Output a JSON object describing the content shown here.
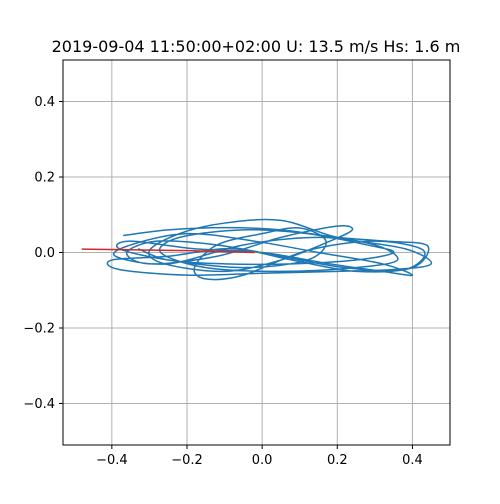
{
  "chart_data": {
    "type": "line",
    "title": "2019-09-04 11:50:00+02:00 U: 13.5 m/s Hs: 1.6 m",
    "xlabel": "",
    "ylabel": "",
    "xlim": [
      -0.53,
      0.5
    ],
    "ylim": [
      -0.51,
      0.51
    ],
    "x_ticks": [
      -0.4,
      -0.2,
      0.0,
      0.2,
      0.4
    ],
    "x_tick_labels": [
      "−0.4",
      "−0.2",
      "0.0",
      "0.2",
      "0.4"
    ],
    "y_ticks": [
      0.4,
      0.2,
      0.0,
      -0.2,
      -0.4
    ],
    "y_tick_labels": [
      "0.4",
      "0.2",
      "0.0",
      "−0.2",
      "−0.4"
    ],
    "grid": true,
    "series": [
      {
        "color": "#1f77b4",
        "style": "trajectory",
        "x": [
          -0.37,
          -0.25,
          -0.1,
          0.05,
          0.2,
          0.33,
          0.44,
          0.4,
          0.25,
          0.08,
          -0.08,
          -0.25,
          -0.4,
          -0.38,
          -0.2,
          0.0,
          0.2,
          0.35,
          0.45,
          0.38,
          0.2,
          0.05,
          -0.1,
          -0.22,
          -0.3,
          -0.26,
          -0.1,
          0.05,
          0.18,
          0.24,
          0.2,
          0.05,
          -0.12,
          -0.3,
          -0.36,
          -0.28,
          -0.12,
          0.05,
          0.22,
          0.38,
          0.43,
          0.3,
          0.12,
          -0.05,
          -0.15,
          -0.18,
          -0.12,
          0.0,
          0.1,
          0.17,
          0.12,
          -0.05,
          -0.25,
          -0.38,
          -0.35,
          -0.18,
          0.0,
          0.18,
          0.32,
          0.4,
          0.32,
          0.15,
          -0.02,
          -0.2,
          -0.35,
          -0.39,
          -0.25,
          -0.05,
          0.15,
          0.3,
          0.36,
          0.25,
          0.05,
          -0.15,
          -0.27,
          -0.22,
          -0.05,
          0.12,
          0.28,
          0.35,
          0.25,
          0.08,
          -0.1,
          -0.25,
          -0.33
        ],
        "y": [
          0.045,
          0.06,
          0.066,
          0.06,
          0.04,
          0.03,
          0.018,
          -0.04,
          -0.05,
          -0.02,
          0.01,
          -0.01,
          -0.02,
          -0.045,
          -0.06,
          -0.055,
          -0.05,
          -0.045,
          -0.03,
          0.01,
          0.04,
          0.085,
          0.078,
          0.05,
          0.005,
          -0.03,
          -0.05,
          -0.02,
          0.03,
          0.06,
          0.07,
          0.04,
          -0.01,
          -0.03,
          0.0,
          0.03,
          0.02,
          -0.01,
          -0.04,
          -0.045,
          0.005,
          0.03,
          0.005,
          -0.06,
          -0.07,
          -0.04,
          0.02,
          0.05,
          0.065,
          0.03,
          -0.02,
          -0.04,
          -0.02,
          0.01,
          0.03,
          0.01,
          0.0,
          -0.03,
          -0.05,
          -0.06,
          -0.03,
          0.0,
          0.03,
          0.05,
          0.02,
          -0.01,
          -0.03,
          0.02,
          0.04,
          0.02,
          -0.02,
          -0.04,
          -0.05,
          -0.04,
          0.0,
          0.04,
          0.06,
          0.05,
          0.02,
          0.0,
          -0.02,
          -0.03,
          -0.03,
          -0.02,
          0.01
        ]
      },
      {
        "color": "#d62728",
        "style": "segment",
        "x": [
          -0.48,
          -0.2,
          -0.02
        ],
        "y": [
          0.009,
          0.005,
          0.0
        ]
      },
      {
        "color": "#2ca02c",
        "style": "segment",
        "x": [
          -0.01,
          0.0
        ],
        "y": [
          0.0,
          0.0
        ]
      }
    ]
  }
}
